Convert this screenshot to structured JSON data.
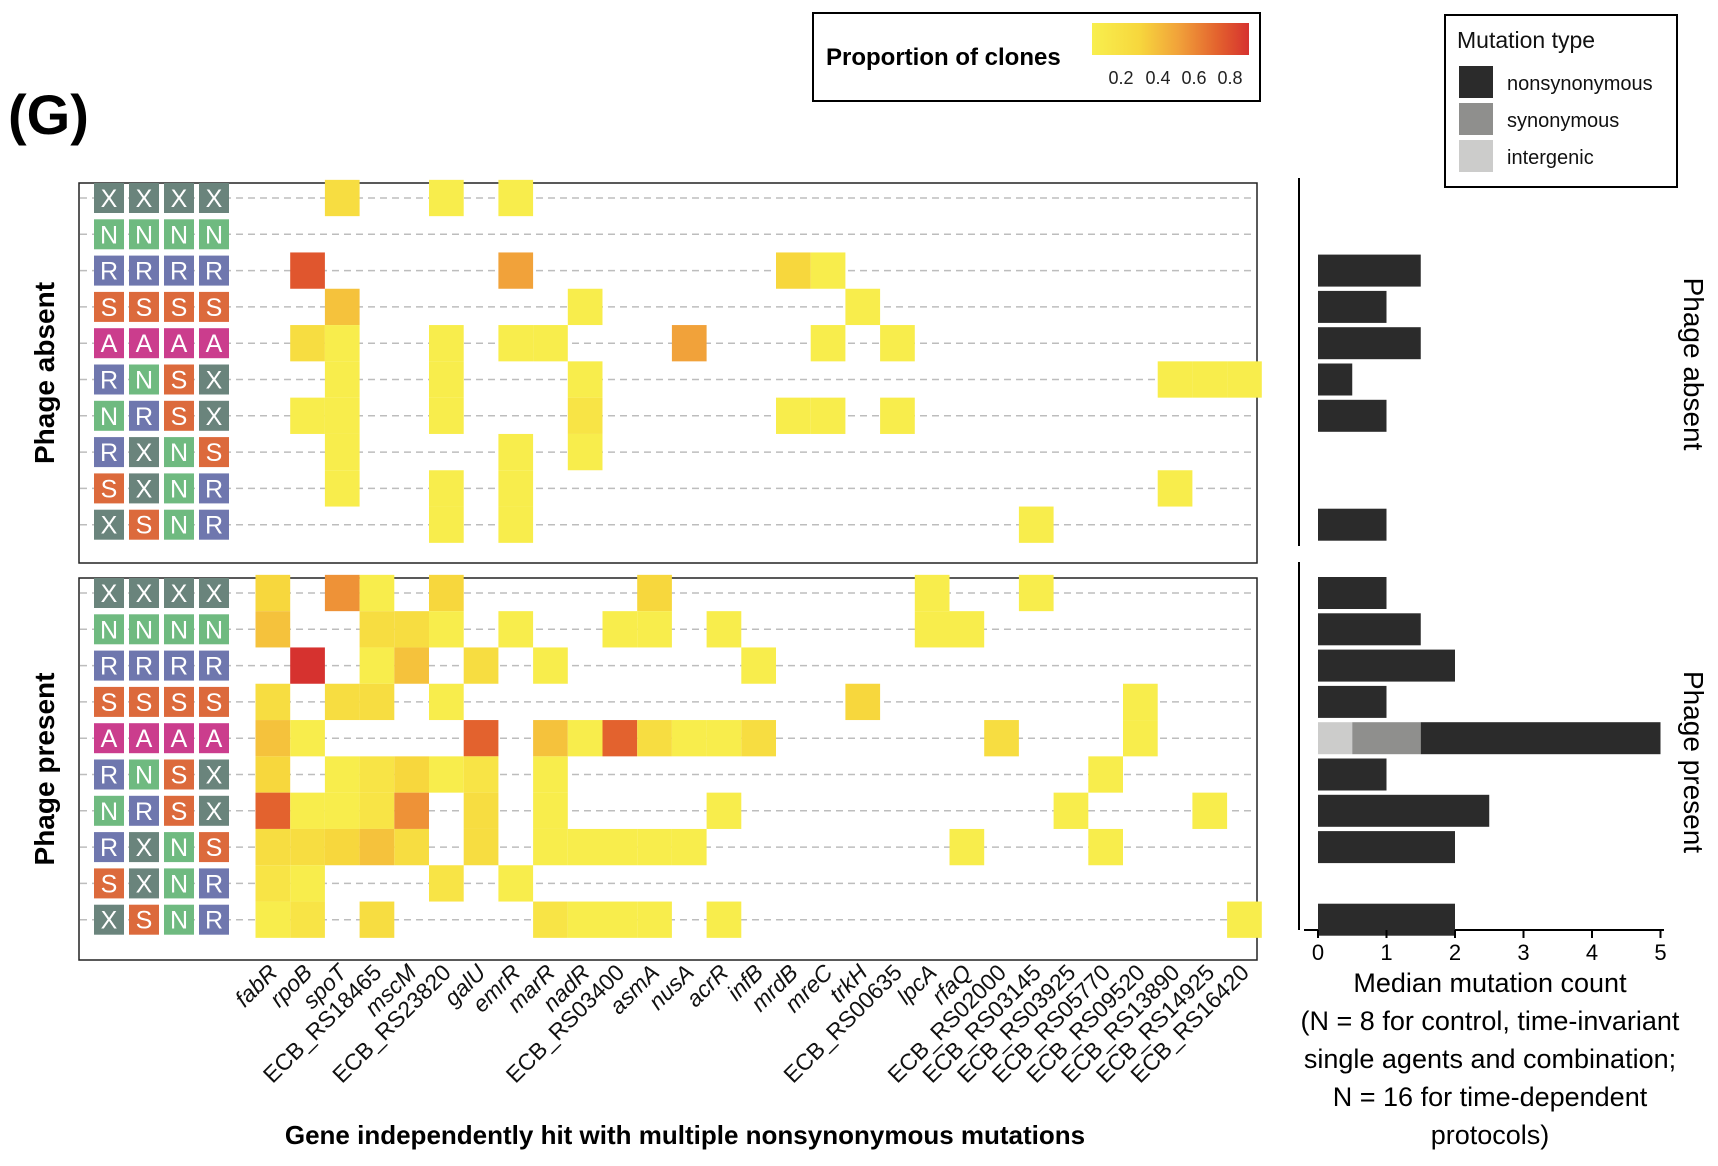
{
  "panel_label": "(G)",
  "colors": {
    "nonsynonymous": "#2b2b2b",
    "synonymous": "#8f8f8d",
    "intergenic": "#cccccb",
    "gradient": [
      "#f8ef4e",
      "#f7d73d",
      "#f1a23a",
      "#e3622e",
      "#d6322f"
    ],
    "protocol": {
      "X": "#6a847c",
      "N": "#6fba80",
      "R": "#6f77ae",
      "S": "#dc6a3c",
      "A": "#cb3d8d"
    }
  },
  "heat_legend": {
    "title": "Proportion of clones",
    "ticks": [
      "0.2",
      "0.4",
      "0.6",
      "0.8"
    ]
  },
  "type_legend": {
    "title": "Mutation type",
    "items": [
      "nonsynonymous",
      "synonymous",
      "intergenic"
    ]
  },
  "chart_data": {
    "type": "heatmap",
    "xlabel": "Gene independently hit with multiple nonsynonymous mutations",
    "facets": [
      "Phage absent",
      "Phage present"
    ],
    "genes": [
      "fabR",
      "rpoB",
      "spoT",
      "ECB_RS18465",
      "mscM",
      "ECB_RS23820",
      "galU",
      "emrR",
      "marR",
      "nadR",
      "ECB_RS03400",
      "asmA",
      "nusA",
      "acrR",
      "infB",
      "mrdB",
      "mreC",
      "trkH",
      "ECB_RS00635",
      "lpcA",
      "rfaQ",
      "ECB_RS02000",
      "ECB_RS03145",
      "ECB_RS03925",
      "ECB_RS05770",
      "ECB_RS09520",
      "ECB_RS13890",
      "ECB_RS14925",
      "ECB_RS16420"
    ],
    "gene_italic": [
      true,
      true,
      true,
      false,
      true,
      false,
      true,
      true,
      true,
      true,
      false,
      true,
      true,
      true,
      true,
      true,
      true,
      true,
      false,
      true,
      true,
      false,
      false,
      false,
      false,
      false,
      false,
      false,
      false
    ],
    "protocols": [
      [
        "X",
        "X",
        "X",
        "X"
      ],
      [
        "N",
        "N",
        "N",
        "N"
      ],
      [
        "R",
        "R",
        "R",
        "R"
      ],
      [
        "S",
        "S",
        "S",
        "S"
      ],
      [
        "A",
        "A",
        "A",
        "A"
      ],
      [
        "R",
        "N",
        "S",
        "X"
      ],
      [
        "N",
        "R",
        "S",
        "X"
      ],
      [
        "R",
        "X",
        "N",
        "S"
      ],
      [
        "S",
        "X",
        "N",
        "R"
      ],
      [
        "X",
        "S",
        "N",
        "R"
      ]
    ],
    "cells": [
      [
        [
          2,
          0.25
        ],
        [
          5,
          0.12
        ],
        [
          7,
          0.12
        ]
      ],
      [],
      [
        [
          1,
          0.75
        ],
        [
          7,
          0.5
        ],
        [
          15,
          0.3
        ],
        [
          16,
          0.12
        ]
      ],
      [
        [
          2,
          0.38
        ],
        [
          9,
          0.12
        ],
        [
          17,
          0.12
        ]
      ],
      [
        [
          1,
          0.25
        ],
        [
          2,
          0.12
        ],
        [
          5,
          0.12
        ],
        [
          7,
          0.12
        ],
        [
          8,
          0.12
        ],
        [
          12,
          0.5
        ],
        [
          16,
          0.12
        ],
        [
          18,
          0.12
        ]
      ],
      [
        [
          2,
          0.12
        ],
        [
          5,
          0.12
        ],
        [
          9,
          0.12
        ],
        [
          26,
          0.12
        ],
        [
          27,
          0.12
        ],
        [
          28,
          0.12
        ]
      ],
      [
        [
          1,
          0.12
        ],
        [
          2,
          0.12
        ],
        [
          5,
          0.12
        ],
        [
          9,
          0.19
        ],
        [
          15,
          0.12
        ],
        [
          16,
          0.12
        ],
        [
          18,
          0.12
        ]
      ],
      [
        [
          2,
          0.12
        ],
        [
          7,
          0.12
        ],
        [
          9,
          0.12
        ]
      ],
      [
        [
          2,
          0.12
        ],
        [
          5,
          0.12
        ],
        [
          7,
          0.12
        ],
        [
          26,
          0.12
        ]
      ],
      [
        [
          5,
          0.12
        ],
        [
          7,
          0.12
        ],
        [
          22,
          0.12
        ]
      ],
      [
        [
          0,
          0.3
        ],
        [
          2,
          0.55
        ],
        [
          3,
          0.12
        ],
        [
          5,
          0.3
        ],
        [
          11,
          0.3
        ],
        [
          19,
          0.12
        ],
        [
          22,
          0.12
        ]
      ],
      [
        [
          0,
          0.38
        ],
        [
          3,
          0.25
        ],
        [
          4,
          0.25
        ],
        [
          5,
          0.12
        ],
        [
          7,
          0.12
        ],
        [
          10,
          0.12
        ],
        [
          11,
          0.12
        ],
        [
          13,
          0.12
        ],
        [
          19,
          0.12
        ],
        [
          20,
          0.12
        ]
      ],
      [
        [
          1,
          0.9
        ],
        [
          3,
          0.12
        ],
        [
          4,
          0.38
        ],
        [
          6,
          0.25
        ],
        [
          8,
          0.12
        ],
        [
          14,
          0.12
        ]
      ],
      [
        [
          0,
          0.25
        ],
        [
          2,
          0.25
        ],
        [
          3,
          0.25
        ],
        [
          5,
          0.12
        ],
        [
          17,
          0.3
        ],
        [
          25,
          0.12
        ]
      ],
      [
        [
          0,
          0.38
        ],
        [
          1,
          0.12
        ],
        [
          6,
          0.7
        ],
        [
          8,
          0.38
        ],
        [
          9,
          0.12
        ],
        [
          10,
          0.7
        ],
        [
          11,
          0.25
        ],
        [
          12,
          0.12
        ],
        [
          13,
          0.12
        ],
        [
          14,
          0.25
        ],
        [
          21,
          0.25
        ],
        [
          25,
          0.12
        ]
      ],
      [
        [
          0,
          0.3
        ],
        [
          2,
          0.12
        ],
        [
          3,
          0.19
        ],
        [
          4,
          0.3
        ],
        [
          5,
          0.12
        ],
        [
          6,
          0.19
        ],
        [
          8,
          0.12
        ],
        [
          24,
          0.12
        ]
      ],
      [
        [
          0,
          0.7
        ],
        [
          1,
          0.12
        ],
        [
          2,
          0.12
        ],
        [
          3,
          0.19
        ],
        [
          4,
          0.55
        ],
        [
          6,
          0.25
        ],
        [
          8,
          0.12
        ],
        [
          13,
          0.12
        ],
        [
          23,
          0.12
        ],
        [
          27,
          0.12
        ]
      ],
      [
        [
          0,
          0.25
        ],
        [
          1,
          0.25
        ],
        [
          2,
          0.3
        ],
        [
          3,
          0.38
        ],
        [
          4,
          0.25
        ],
        [
          6,
          0.25
        ],
        [
          8,
          0.12
        ],
        [
          9,
          0.12
        ],
        [
          10,
          0.12
        ],
        [
          11,
          0.12
        ],
        [
          12,
          0.12
        ],
        [
          20,
          0.12
        ],
        [
          24,
          0.12
        ]
      ],
      [
        [
          0,
          0.19
        ],
        [
          1,
          0.12
        ],
        [
          5,
          0.19
        ],
        [
          7,
          0.12
        ]
      ],
      [
        [
          0,
          0.12
        ],
        [
          1,
          0.19
        ],
        [
          3,
          0.25
        ],
        [
          8,
          0.19
        ],
        [
          9,
          0.12
        ],
        [
          10,
          0.12
        ],
        [
          11,
          0.12
        ],
        [
          13,
          0.12
        ],
        [
          28,
          0.12
        ]
      ]
    ],
    "bars": {
      "xlabel_lines": [
        "Median mutation count",
        "(N = 8 for control, time-invariant",
        "single agents and combination;",
        "N = 16 for time-dependent",
        "protocols)"
      ],
      "xticks": [
        0,
        1,
        2,
        3,
        4,
        5
      ],
      "xlim": [
        0,
        5
      ],
      "values": [
        null,
        null,
        {
          "non": 1.5
        },
        {
          "non": 1.0
        },
        {
          "non": 1.5
        },
        {
          "non": 0.5
        },
        {
          "non": 1.0
        },
        null,
        null,
        {
          "non": 1.0
        },
        {
          "non": 1.0
        },
        {
          "non": 1.5
        },
        {
          "non": 2.0
        },
        {
          "non": 1.0
        },
        {
          "intergenic": 0.5,
          "syn": 1.0,
          "non": 3.5
        },
        {
          "non": 1.0
        },
        {
          "non": 2.5
        },
        {
          "non": 2.0
        },
        null,
        {
          "non": 2.0
        }
      ]
    }
  }
}
